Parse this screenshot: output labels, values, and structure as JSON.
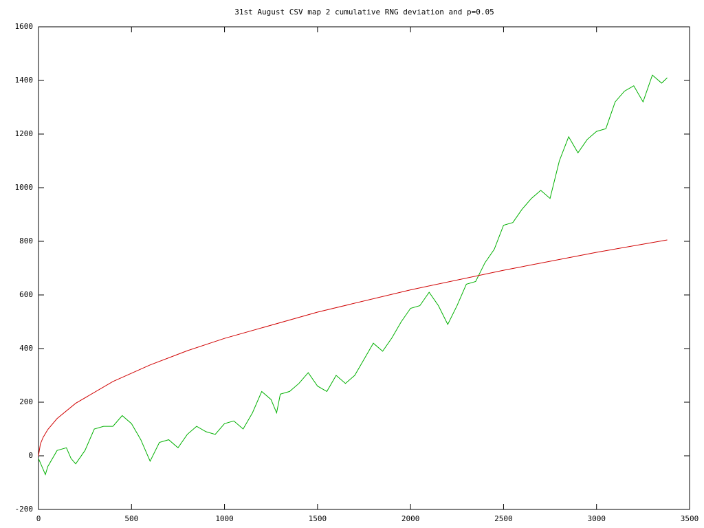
{
  "chart_data": {
    "type": "line",
    "title": "31st August CSV map 2 cumulative RNG deviation and p=0.05",
    "xlim": [
      0,
      3500
    ],
    "xticks": [
      0,
      500,
      1000,
      1500,
      2000,
      2500,
      3000,
      3500
    ],
    "ylim": [
      -200,
      1600
    ],
    "yticks": [
      -200,
      0,
      200,
      400,
      600,
      800,
      1000,
      1200,
      1400,
      1600
    ],
    "grid": false,
    "series": [
      {
        "name": "cumulative RNG deviation",
        "color": "#00b000",
        "x": [
          0,
          37,
          50,
          100,
          150,
          175,
          200,
          250,
          300,
          350,
          400,
          450,
          500,
          550,
          600,
          650,
          700,
          750,
          800,
          850,
          900,
          950,
          1000,
          1050,
          1100,
          1150,
          1200,
          1250,
          1280,
          1300,
          1350,
          1400,
          1450,
          1500,
          1550,
          1600,
          1650,
          1700,
          1750,
          1800,
          1850,
          1900,
          1950,
          2000,
          2050,
          2100,
          2150,
          2200,
          2250,
          2300,
          2350,
          2400,
          2450,
          2500,
          2550,
          2600,
          2650,
          2700,
          2750,
          2800,
          2850,
          2900,
          2950,
          3000,
          3050,
          3100,
          3150,
          3200,
          3250,
          3300,
          3350,
          3380
        ],
        "values": [
          -10,
          -70,
          -40,
          20,
          30,
          -10,
          -30,
          20,
          100,
          110,
          110,
          150,
          120,
          60,
          -20,
          50,
          60,
          30,
          80,
          110,
          90,
          80,
          120,
          130,
          100,
          160,
          240,
          210,
          160,
          230,
          240,
          270,
          310,
          260,
          240,
          300,
          270,
          300,
          360,
          420,
          390,
          440,
          500,
          550,
          560,
          610,
          560,
          490,
          560,
          640,
          650,
          720,
          770,
          860,
          870,
          920,
          960,
          990,
          960,
          1100,
          1190,
          1130,
          1180,
          1210,
          1220,
          1320,
          1360,
          1380,
          1320,
          1420,
          1390,
          1410
        ]
      },
      {
        "name": "p=0.05",
        "color": "#d00000",
        "x": [
          0,
          10,
          25,
          50,
          100,
          200,
          400,
          600,
          800,
          1000,
          1500,
          2000,
          2500,
          3000,
          3380
        ],
        "values": [
          0,
          44,
          69,
          98,
          139,
          196,
          277,
          339,
          392,
          438,
          536,
          619,
          692,
          759,
          805
        ]
      }
    ]
  }
}
